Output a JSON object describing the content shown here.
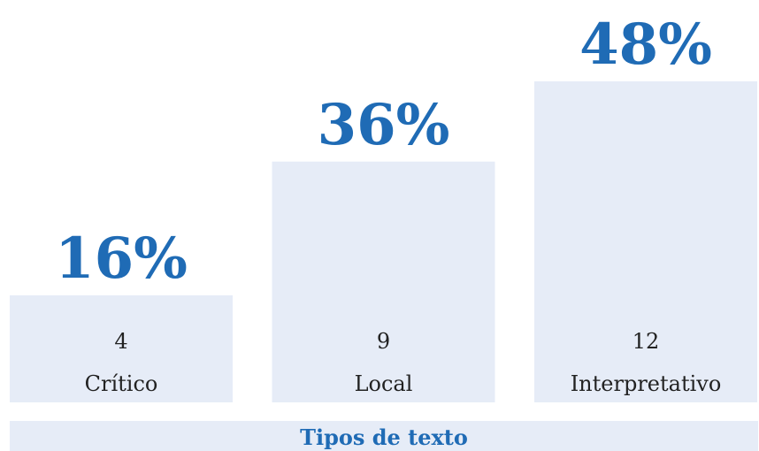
{
  "chart_data": {
    "type": "bar",
    "categories": [
      "Crítico",
      "Local",
      "Interpretativo"
    ],
    "values": [
      16,
      36,
      48
    ],
    "value_labels": [
      "16%",
      "36%",
      "48%"
    ],
    "counts": [
      4,
      9,
      12
    ],
    "x_label": "Tipos de texto",
    "color": "#e6ecf7",
    "label_color": "#1f6bb5"
  }
}
